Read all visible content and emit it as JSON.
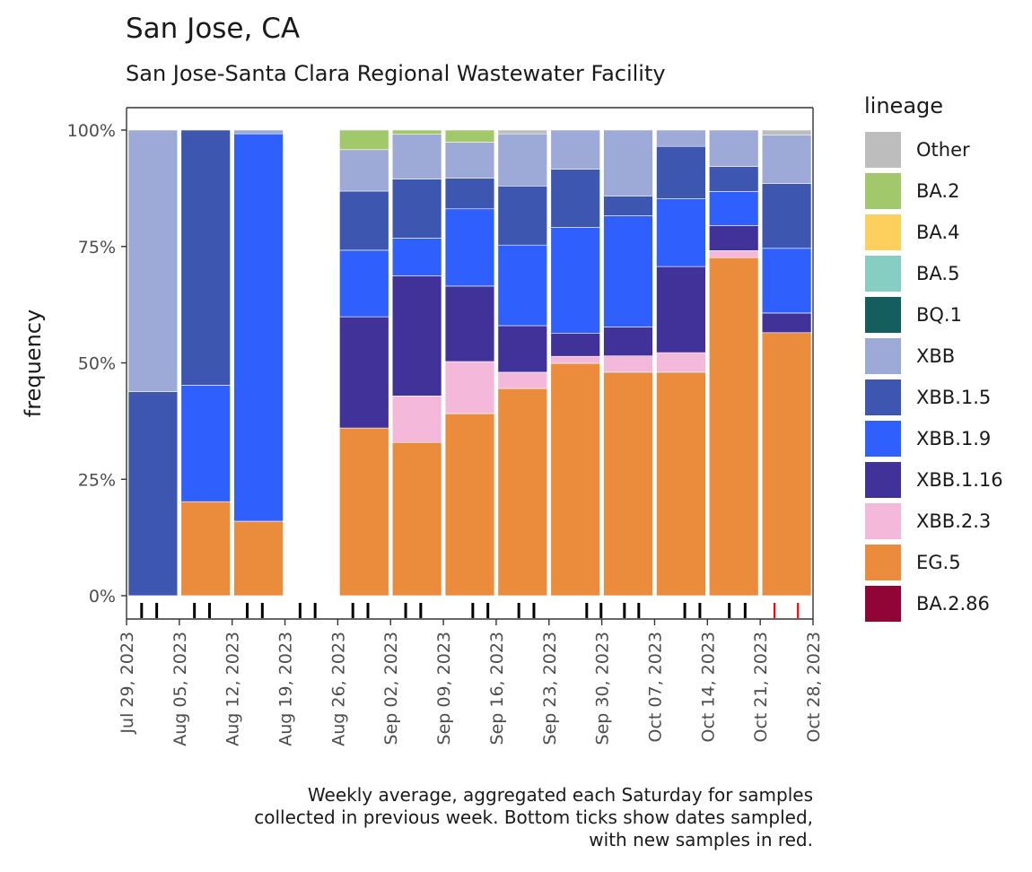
{
  "header": {
    "title": "San Jose, CA",
    "subtitle": "San Jose-Santa Clara Regional Wastewater Facility"
  },
  "footnote": "Weekly average, aggregated each Saturday for samples\ncollected in previous week. Bottom ticks show dates sampled,\nwith new samples in red.",
  "legend": {
    "title": "lineage",
    "items": [
      {
        "label": "Other",
        "color": "#bdbdbd"
      },
      {
        "label": "BA.2",
        "color": "#a1c96c"
      },
      {
        "label": "BA.4",
        "color": "#fdd05e"
      },
      {
        "label": "BA.5",
        "color": "#86cdc2"
      },
      {
        "label": "BQ.1",
        "color": "#155e5e"
      },
      {
        "label": "XBB",
        "color": "#9da9d6"
      },
      {
        "label": "XBB.1.5",
        "color": "#3d57b0"
      },
      {
        "label": "XBB.1.9",
        "color": "#2f5ffc"
      },
      {
        "label": "XBB.1.16",
        "color": "#41329a"
      },
      {
        "label": "XBB.2.3",
        "color": "#f3b8da"
      },
      {
        "label": "EG.5",
        "color": "#eb8b3c"
      },
      {
        "label": "BA.2.86",
        "color": "#910536"
      }
    ]
  },
  "chart_data": {
    "type": "bar",
    "stacked": true,
    "title": "San Jose, CA",
    "subtitle": "San Jose-Santa Clara Regional Wastewater Facility",
    "xlabel": "",
    "ylabel": "frequency",
    "ylim": [
      0,
      100
    ],
    "y_ticks": [
      "0%",
      "25%",
      "50%",
      "75%",
      "100%"
    ],
    "y_tick_values": [
      0,
      25,
      50,
      75,
      100
    ],
    "x_ticks": [
      "Jul 29, 2023",
      "Aug 05, 2023",
      "Aug 12, 2023",
      "Aug 19, 2023",
      "Aug 26, 2023",
      "Sep 02, 2023",
      "Sep 09, 2023",
      "Sep 16, 2023",
      "Sep 23, 2023",
      "Sep 30, 2023",
      "Oct 07, 2023",
      "Oct 14, 2023",
      "Oct 21, 2023",
      "Oct 28, 2023"
    ],
    "x_range_days": [
      0,
      91
    ],
    "x_start": "2023-07-29",
    "legend_position": "right",
    "grid": false,
    "stack_order_bottom_to_top": [
      "BA.2.86",
      "EG.5",
      "XBB.2.3",
      "XBB.1.16",
      "XBB.1.9",
      "XBB.1.5",
      "XBB",
      "BQ.1",
      "BA.5",
      "BA.4",
      "BA.2",
      "Other"
    ],
    "weeks": [
      {
        "start": "Jul 29",
        "end": "Aug 05",
        "values": {
          "XBB.1.5": 43.8,
          "XBB": 56.2
        }
      },
      {
        "start": "Aug 05",
        "end": "Aug 12",
        "values": {
          "EG.5": 20.2,
          "XBB.1.9": 25.0,
          "XBB.1.5": 54.8
        }
      },
      {
        "start": "Aug 12",
        "end": "Aug 19",
        "values": {
          "EG.5": 16.0,
          "XBB.1.9": 83.2,
          "XBB": 0.8
        }
      },
      {
        "start": "Aug 26",
        "end": "Sep 02",
        "values": {
          "EG.5": 36.0,
          "XBB.1.16": 23.9,
          "XBB.1.9": 14.3,
          "XBB.1.5": 12.7,
          "XBB": 8.9,
          "BA.2": 4.2
        }
      },
      {
        "start": "Sep 02",
        "end": "Sep 09",
        "values": {
          "EG.5": 32.9,
          "XBB.2.3": 10.0,
          "XBB.1.16": 25.8,
          "XBB.1.9": 8.1,
          "XBB.1.5": 12.7,
          "XBB": 9.6,
          "BA.2": 0.9
        }
      },
      {
        "start": "Sep 09",
        "end": "Sep 16",
        "values": {
          "EG.5": 39.1,
          "XBB.2.3": 11.2,
          "XBB.1.16": 16.2,
          "XBB.1.9": 16.6,
          "XBB.1.5": 6.6,
          "XBB": 7.7,
          "BA.2": 2.6
        }
      },
      {
        "start": "Sep 16",
        "end": "Sep 23",
        "values": {
          "EG.5": 44.5,
          "XBB.2.3": 3.5,
          "XBB.1.16": 10.0,
          "XBB.1.9": 17.3,
          "XBB.1.5": 12.7,
          "XBB": 11.2,
          "Other": 0.8
        }
      },
      {
        "start": "Sep 23",
        "end": "Sep 30",
        "values": {
          "EG.5": 49.9,
          "XBB.2.3": 1.5,
          "XBB.1.16": 5.0,
          "XBB.1.9": 22.7,
          "XBB.1.5": 12.5,
          "XBB": 8.4
        }
      },
      {
        "start": "Sep 30",
        "end": "Oct 07",
        "values": {
          "EG.5": 48.0,
          "XBB.2.3": 3.5,
          "XBB.1.16": 6.2,
          "XBB.1.9": 23.9,
          "XBB.1.5": 4.2,
          "XBB": 14.2
        }
      },
      {
        "start": "Oct 07",
        "end": "Oct 14",
        "values": {
          "EG.5": 48.0,
          "XBB.2.3": 4.2,
          "XBB.1.16": 18.5,
          "XBB.1.9": 14.6,
          "XBB.1.5": 11.2,
          "XBB": 3.5
        }
      },
      {
        "start": "Oct 14",
        "end": "Oct 21",
        "values": {
          "EG.5": 72.6,
          "XBB.2.3": 1.5,
          "XBB.1.16": 5.4,
          "XBB.1.9": 7.3,
          "XBB.1.5": 5.4,
          "XBB": 7.8
        }
      },
      {
        "start": "Oct 21",
        "end": "Oct 28",
        "values": {
          "EG.5": 56.5,
          "XBB.1.16": 4.2,
          "XBB.1.9": 13.9,
          "XBB.1.5": 13.9,
          "XBB": 10.4,
          "Other": 1.1
        }
      }
    ],
    "week_start_day_offsets": [
      0,
      7,
      14,
      28,
      35,
      42,
      49,
      56,
      63,
      70,
      77,
      84
    ],
    "sample_dates": [
      {
        "date": "Jul 31",
        "day": 2,
        "new": false
      },
      {
        "date": "Aug 02",
        "day": 4,
        "new": false
      },
      {
        "date": "Aug 07",
        "day": 9,
        "new": false
      },
      {
        "date": "Aug 09",
        "day": 11,
        "new": false
      },
      {
        "date": "Aug 14",
        "day": 16,
        "new": false
      },
      {
        "date": "Aug 16",
        "day": 18,
        "new": false
      },
      {
        "date": "Aug 21",
        "day": 23,
        "new": false
      },
      {
        "date": "Aug 23",
        "day": 25,
        "new": false
      },
      {
        "date": "Aug 28",
        "day": 30,
        "new": false
      },
      {
        "date": "Aug 30",
        "day": 32,
        "new": false
      },
      {
        "date": "Sep 04",
        "day": 37,
        "new": false
      },
      {
        "date": "Sep 06",
        "day": 39,
        "new": false
      },
      {
        "date": "Sep 12",
        "day": 45.9,
        "new": false
      },
      {
        "date": "Sep 14",
        "day": 47.9,
        "new": false
      },
      {
        "date": "Sep 19",
        "day": 52,
        "new": false
      },
      {
        "date": "Sep 21",
        "day": 54,
        "new": false
      },
      {
        "date": "Sep 28",
        "day": 61,
        "new": false
      },
      {
        "date": "Sep 30",
        "day": 62.9,
        "new": false
      },
      {
        "date": "Oct 03",
        "day": 66,
        "new": false
      },
      {
        "date": "Oct 05",
        "day": 67.9,
        "new": false
      },
      {
        "date": "Oct 11",
        "day": 74,
        "new": false
      },
      {
        "date": "Oct 13",
        "day": 76,
        "new": false
      },
      {
        "date": "Oct 17",
        "day": 79.9,
        "new": false
      },
      {
        "date": "Oct 19",
        "day": 82,
        "new": false
      },
      {
        "date": "Oct 23",
        "day": 85.9,
        "new": true
      },
      {
        "date": "Oct 26",
        "day": 89,
        "new": true
      }
    ]
  }
}
